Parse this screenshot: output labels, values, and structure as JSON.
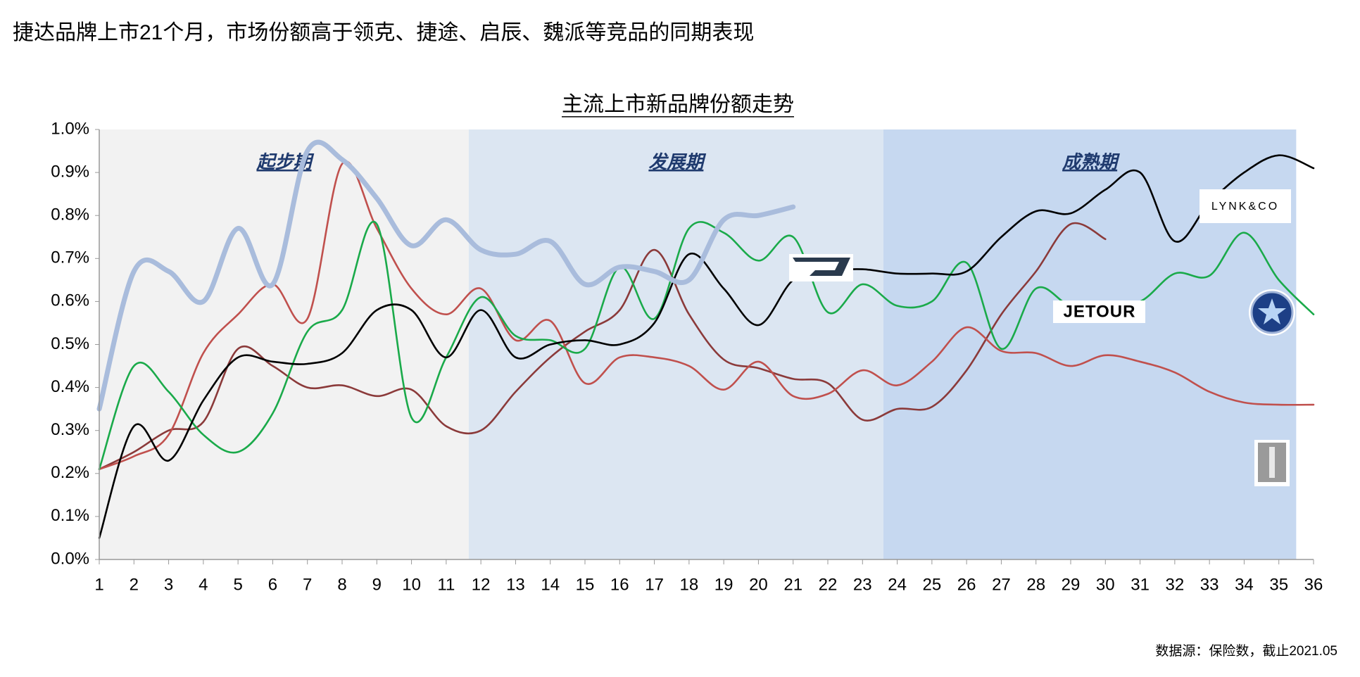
{
  "title": "捷达品牌上市21个月，市场份额高于领克、捷途、启辰、魏派等竞品的同期表现",
  "source": "数据源：保险数，截止2021.05",
  "chart_data": {
    "type": "line",
    "title": "主流上市新品牌份额走势",
    "categories": [
      "1",
      "2",
      "3",
      "4",
      "5",
      "6",
      "7",
      "8",
      "9",
      "10",
      "11",
      "12",
      "13",
      "14",
      "15",
      "16",
      "17",
      "18",
      "19",
      "20",
      "21",
      "22",
      "23",
      "24",
      "25",
      "26",
      "27",
      "28",
      "29",
      "30",
      "31",
      "32",
      "33",
      "34",
      "35",
      "36"
    ],
    "ylim": [
      0,
      1.0
    ],
    "yticks": [
      {
        "value": 0,
        "label": "0.0%"
      },
      {
        "value": 0.1,
        "label": "0.1%"
      },
      {
        "value": 0.2,
        "label": "0.2%"
      },
      {
        "value": 0.3,
        "label": "0.3%"
      },
      {
        "value": 0.4,
        "label": "0.4%"
      },
      {
        "value": 0.5,
        "label": "0.5%"
      },
      {
        "value": 0.6,
        "label": "0.6%"
      },
      {
        "value": 0.7,
        "label": "0.7%"
      },
      {
        "value": 0.8,
        "label": "0.8%"
      },
      {
        "value": 0.9,
        "label": "0.9%"
      },
      {
        "value": 1.0,
        "label": "1.0%"
      }
    ],
    "grid": false,
    "phases": [
      {
        "label": "起步期",
        "start": 1,
        "end": 11.65,
        "color": "#f2f2f2"
      },
      {
        "label": "发展期",
        "start": 11.65,
        "end": 23.6,
        "color": "#dce6f2"
      },
      {
        "label": "成熟期",
        "start": 23.6,
        "end": 35.5,
        "color": "#c6d8f0"
      }
    ],
    "series": [
      {
        "color": "#a9bcdc",
        "values": [
          0.35,
          0.67,
          0.67,
          0.6,
          0.77,
          0.64,
          0.95,
          0.93,
          0.84,
          0.73,
          0.79,
          0.72,
          0.71,
          0.74,
          0.64,
          0.68,
          0.67,
          0.65,
          0.79,
          0.8,
          0.82,
          null,
          null,
          null,
          null,
          null,
          null,
          null,
          null,
          null,
          null,
          null,
          null,
          null,
          null,
          null
        ]
      },
      {
        "name": "LYNK&CO",
        "color": "#000000",
        "values": [
          0.05,
          0.31,
          0.23,
          0.37,
          0.47,
          0.46,
          0.455,
          0.48,
          0.58,
          0.58,
          0.47,
          0.58,
          0.47,
          0.5,
          0.51,
          0.5,
          0.55,
          0.71,
          0.63,
          0.545,
          0.65,
          0.67,
          0.675,
          0.665,
          0.665,
          0.67,
          0.75,
          0.81,
          0.805,
          0.86,
          0.9,
          0.74,
          0.83,
          0.9,
          0.94,
          0.91
        ]
      },
      {
        "name": "JETOUR",
        "color": "#1aaa4a",
        "values": [
          0.21,
          0.45,
          0.39,
          0.29,
          0.25,
          0.34,
          0.53,
          0.58,
          0.78,
          0.33,
          0.47,
          0.61,
          0.52,
          0.51,
          0.49,
          0.68,
          0.56,
          0.77,
          0.76,
          0.695,
          0.75,
          0.575,
          0.64,
          0.59,
          0.6,
          0.69,
          0.49,
          0.63,
          0.59,
          0.6,
          0.6,
          0.665,
          0.66,
          0.76,
          0.65,
          0.57
        ]
      },
      {
        "color": "#c0504d",
        "values": [
          0.21,
          0.24,
          0.29,
          0.48,
          0.57,
          0.64,
          0.56,
          0.92,
          0.77,
          0.63,
          0.57,
          0.63,
          0.51,
          0.555,
          0.41,
          0.47,
          0.47,
          0.45,
          0.395,
          0.46,
          0.38,
          0.385,
          0.44,
          0.405,
          0.46,
          0.54,
          0.485,
          0.48,
          0.45,
          0.475,
          0.46,
          0.435,
          0.39,
          0.365,
          0.36,
          0.36
        ]
      },
      {
        "color": "#8b3a3a",
        "values": [
          0.21,
          0.25,
          0.3,
          0.32,
          0.49,
          0.45,
          0.4,
          0.405,
          0.38,
          0.395,
          0.31,
          0.3,
          0.39,
          0.47,
          0.53,
          0.58,
          0.72,
          0.57,
          0.465,
          0.445,
          0.42,
          0.41,
          0.325,
          0.35,
          0.355,
          0.44,
          0.57,
          0.67,
          0.78,
          0.745,
          null,
          null,
          null,
          null,
          null,
          null
        ]
      }
    ]
  }
}
